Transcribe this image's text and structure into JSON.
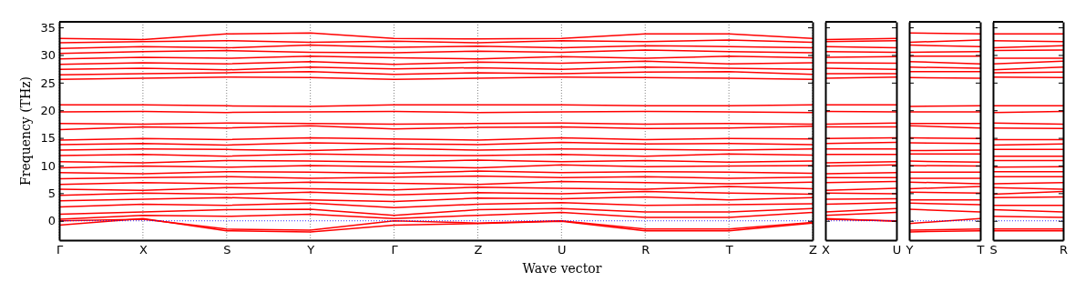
{
  "chart_data": [
    {
      "type": "line",
      "color": "#ff0000",
      "xlabel": "Wave vector",
      "ylabel": "Frequency (THz)",
      "grid": "x",
      "ylim": [
        -3.5,
        36
      ],
      "yticks": [
        0,
        5,
        10,
        15,
        20,
        25,
        30,
        35
      ],
      "categories": [
        "Γ",
        "X",
        "S",
        "Y",
        "Γ",
        "Z",
        "U",
        "R",
        "T",
        "Z"
      ],
      "ref_lines": [
        {
          "axis": "y",
          "value": 0,
          "color": "#0000ff",
          "line_style": "dotted"
        }
      ],
      "series": [
        {
          "values": [
            -0.8,
            0.4,
            -1.8,
            -2.0,
            -0.8,
            -0.5,
            -0.1,
            -1.8,
            -1.8,
            -0.4
          ]
        },
        {
          "values": [
            0,
            0.3,
            -1.5,
            -1.7,
            0,
            -0.4,
            0,
            -1.5,
            -1.5,
            -0.3
          ]
        },
        {
          "values": [
            0.3,
            1.0,
            0.8,
            1.2,
            0.4,
            1.0,
            1.5,
            0.6,
            0.6,
            1.5
          ]
        },
        {
          "values": [
            1.2,
            1.6,
            2.0,
            2.1,
            1.0,
            2.0,
            2.2,
            1.6,
            1.6,
            2.2
          ]
        },
        {
          "values": [
            2.5,
            3.0,
            2.8,
            3.2,
            2.4,
            3.0,
            3.3,
            2.8,
            2.9,
            3.1
          ]
        },
        {
          "values": [
            3.6,
            3.9,
            4.2,
            3.8,
            3.5,
            4.1,
            4.0,
            4.3,
            3.8,
            4.2
          ]
        },
        {
          "values": [
            4.6,
            5.0,
            4.8,
            5.2,
            4.7,
            5.1,
            4.9,
            5.3,
            5.0,
            4.8
          ]
        },
        {
          "values": [
            5.7,
            5.5,
            6.0,
            5.8,
            5.6,
            6.1,
            5.9,
            5.7,
            6.2,
            5.8
          ]
        },
        {
          "values": [
            6.6,
            6.9,
            6.7,
            7.0,
            6.8,
            6.6,
            7.1,
            6.9,
            6.7,
            7.0
          ]
        },
        {
          "values": [
            7.6,
            7.8,
            8.0,
            7.7,
            7.9,
            8.1,
            7.8,
            8.0,
            7.7,
            7.9
          ]
        },
        {
          "values": [
            8.7,
            8.5,
            8.9,
            8.8,
            8.6,
            9.0,
            8.7,
            8.9,
            8.8,
            8.6
          ]
        },
        {
          "values": [
            9.6,
            9.9,
            9.7,
            10.0,
            9.8,
            9.6,
            10.1,
            9.8,
            9.9,
            10.0
          ]
        },
        {
          "values": [
            10.7,
            10.5,
            10.9,
            10.8,
            10.6,
            11.0,
            10.7,
            10.9,
            10.6,
            10.8
          ]
        },
        {
          "values": [
            11.8,
            12.0,
            11.7,
            12.1,
            11.9,
            11.8,
            12.0,
            11.7,
            12.1,
            11.9
          ]
        },
        {
          "values": [
            12.8,
            13.0,
            12.9,
            12.7,
            13.1,
            12.8,
            13.0,
            12.9,
            12.8,
            13.0
          ]
        },
        {
          "values": [
            13.8,
            14.0,
            13.7,
            14.1,
            13.9,
            13.8,
            14.2,
            13.9,
            14.0,
            13.8
          ]
        },
        {
          "values": [
            14.6,
            14.9,
            14.7,
            15.0,
            14.8,
            14.6,
            15.0,
            14.7,
            14.9,
            14.8
          ]
        },
        {
          "values": [
            16.5,
            17.0,
            16.8,
            17.2,
            16.6,
            16.9,
            17.0,
            16.7,
            16.8,
            17.1
          ]
        },
        {
          "values": [
            17.6,
            17.5,
            17.7,
            17.6,
            17.5,
            17.6,
            17.7,
            17.5,
            17.6,
            17.5
          ]
        },
        {
          "values": [
            19.7,
            19.8,
            19.6,
            19.7,
            19.8,
            19.6,
            19.7,
            19.8,
            19.7,
            19.6
          ]
        },
        {
          "values": [
            21.0,
            21.0,
            20.8,
            20.7,
            21.0,
            21.0,
            21.0,
            20.8,
            20.8,
            21.0
          ]
        },
        {
          "values": [
            25.6,
            25.8,
            26.0,
            25.9,
            25.6,
            25.8,
            26.0,
            25.9,
            25.8,
            25.6
          ]
        },
        {
          "values": [
            26.4,
            26.6,
            26.8,
            27.0,
            26.5,
            26.8,
            26.6,
            26.9,
            27.0,
            26.5
          ]
        },
        {
          "values": [
            27.4,
            27.6,
            27.3,
            27.8,
            27.5,
            27.7,
            27.4,
            27.8,
            27.6,
            27.4
          ]
        },
        {
          "values": [
            28.3,
            28.6,
            28.4,
            28.8,
            28.3,
            28.7,
            28.5,
            28.9,
            28.4,
            28.6
          ]
        },
        {
          "values": [
            29.3,
            29.6,
            29.4,
            29.8,
            29.5,
            29.3,
            29.7,
            29.4,
            29.8,
            29.5
          ]
        },
        {
          "values": [
            30.3,
            30.6,
            30.8,
            30.5,
            30.4,
            30.7,
            30.5,
            30.9,
            30.6,
            30.4
          ]
        },
        {
          "values": [
            31.2,
            31.5,
            31.3,
            31.8,
            31.4,
            31.6,
            31.3,
            31.7,
            31.5,
            31.3
          ]
        },
        {
          "values": [
            32.2,
            32.4,
            32.6,
            32.3,
            32.5,
            32.2,
            32.6,
            32.4,
            32.7,
            32.3
          ]
        },
        {
          "values": [
            33.0,
            32.8,
            33.8,
            34.0,
            33.0,
            32.9,
            33.0,
            33.8,
            33.8,
            33.0
          ]
        }
      ]
    },
    {
      "type": "line",
      "color": "#ff0000",
      "tick_labels": "x",
      "ylim": [
        -3.5,
        36
      ],
      "yticks": [
        0,
        5,
        10,
        15,
        20,
        25,
        30,
        35
      ],
      "categories": [
        "X",
        "U"
      ],
      "ref_lines": [
        {
          "axis": "y",
          "value": 0,
          "color": "#0000ff",
          "line_style": "dotted"
        }
      ],
      "series": [
        {
          "values": [
            0.4,
            -0.1
          ]
        },
        {
          "values": [
            0.3,
            0
          ]
        },
        {
          "values": [
            1.0,
            1.5
          ]
        },
        {
          "values": [
            1.6,
            2.2
          ]
        },
        {
          "values": [
            3.0,
            3.3
          ]
        },
        {
          "values": [
            3.9,
            4.0
          ]
        },
        {
          "values": [
            5.0,
            4.9
          ]
        },
        {
          "values": [
            5.5,
            5.9
          ]
        },
        {
          "values": [
            6.9,
            7.1
          ]
        },
        {
          "values": [
            7.8,
            7.8
          ]
        },
        {
          "values": [
            8.5,
            8.7
          ]
        },
        {
          "values": [
            9.9,
            10.1
          ]
        },
        {
          "values": [
            10.5,
            10.7
          ]
        },
        {
          "values": [
            12.0,
            12.0
          ]
        },
        {
          "values": [
            13.0,
            13.0
          ]
        },
        {
          "values": [
            14.0,
            14.2
          ]
        },
        {
          "values": [
            14.9,
            15.0
          ]
        },
        {
          "values": [
            17.0,
            17.0
          ]
        },
        {
          "values": [
            17.5,
            17.7
          ]
        },
        {
          "values": [
            19.8,
            19.7
          ]
        },
        {
          "values": [
            21.0,
            21.0
          ]
        },
        {
          "values": [
            25.8,
            26.0
          ]
        },
        {
          "values": [
            26.6,
            26.6
          ]
        },
        {
          "values": [
            27.6,
            27.4
          ]
        },
        {
          "values": [
            28.6,
            28.5
          ]
        },
        {
          "values": [
            29.6,
            29.7
          ]
        },
        {
          "values": [
            30.6,
            30.5
          ]
        },
        {
          "values": [
            31.5,
            31.3
          ]
        },
        {
          "values": [
            32.4,
            32.6
          ]
        },
        {
          "values": [
            32.8,
            33.0
          ]
        }
      ]
    },
    {
      "type": "line",
      "color": "#ff0000",
      "tick_labels": "x",
      "ylim": [
        -3.5,
        36
      ],
      "yticks": [
        0,
        5,
        10,
        15,
        20,
        25,
        30,
        35
      ],
      "categories": [
        "Y",
        "T"
      ],
      "ref_lines": [
        {
          "axis": "y",
          "value": 0,
          "color": "#0000ff",
          "line_style": "dotted"
        }
      ],
      "series": [
        {
          "values": [
            -2.0,
            -1.8
          ]
        },
        {
          "values": [
            -1.7,
            -1.5
          ]
        },
        {
          "values": [
            -0.5,
            0.4
          ]
        },
        {
          "values": [
            2.1,
            1.6
          ]
        },
        {
          "values": [
            3.2,
            2.9
          ]
        },
        {
          "values": [
            3.8,
            3.8
          ]
        },
        {
          "values": [
            5.2,
            5.0
          ]
        },
        {
          "values": [
            5.8,
            6.2
          ]
        },
        {
          "values": [
            7.0,
            6.7
          ]
        },
        {
          "values": [
            7.7,
            7.7
          ]
        },
        {
          "values": [
            8.8,
            8.8
          ]
        },
        {
          "values": [
            10.0,
            9.9
          ]
        },
        {
          "values": [
            10.8,
            10.6
          ]
        },
        {
          "values": [
            12.1,
            12.1
          ]
        },
        {
          "values": [
            12.7,
            12.8
          ]
        },
        {
          "values": [
            14.1,
            14.0
          ]
        },
        {
          "values": [
            15.0,
            14.9
          ]
        },
        {
          "values": [
            17.2,
            16.8
          ]
        },
        {
          "values": [
            17.6,
            17.6
          ]
        },
        {
          "values": [
            19.7,
            19.7
          ]
        },
        {
          "values": [
            20.7,
            20.8
          ]
        },
        {
          "values": [
            25.9,
            25.8
          ]
        },
        {
          "values": [
            27.0,
            27.0
          ]
        },
        {
          "values": [
            27.8,
            27.6
          ]
        },
        {
          "values": [
            28.8,
            28.4
          ]
        },
        {
          "values": [
            29.8,
            29.8
          ]
        },
        {
          "values": [
            30.5,
            30.6
          ]
        },
        {
          "values": [
            31.8,
            31.5
          ]
        },
        {
          "values": [
            32.3,
            32.7
          ]
        },
        {
          "values": [
            34.0,
            33.8
          ]
        }
      ]
    },
    {
      "type": "line",
      "color": "#ff0000",
      "tick_labels": "x",
      "ylim": [
        -3.5,
        36
      ],
      "yticks": [
        0,
        5,
        10,
        15,
        20,
        25,
        30,
        35
      ],
      "categories": [
        "S",
        "R"
      ],
      "ref_lines": [
        {
          "axis": "y",
          "value": 0,
          "color": "#0000ff",
          "line_style": "dotted"
        }
      ],
      "series": [
        {
          "values": [
            -1.8,
            -1.8
          ]
        },
        {
          "values": [
            -1.5,
            -1.5
          ]
        },
        {
          "values": [
            0.8,
            0.6
          ]
        },
        {
          "values": [
            2.0,
            1.6
          ]
        },
        {
          "values": [
            2.8,
            2.8
          ]
        },
        {
          "values": [
            4.2,
            4.3
          ]
        },
        {
          "values": [
            4.8,
            5.3
          ]
        },
        {
          "values": [
            6.0,
            5.7
          ]
        },
        {
          "values": [
            6.7,
            6.9
          ]
        },
        {
          "values": [
            8.0,
            8.0
          ]
        },
        {
          "values": [
            8.9,
            8.9
          ]
        },
        {
          "values": [
            9.7,
            9.8
          ]
        },
        {
          "values": [
            10.9,
            10.9
          ]
        },
        {
          "values": [
            11.7,
            11.7
          ]
        },
        {
          "values": [
            12.9,
            12.9
          ]
        },
        {
          "values": [
            13.7,
            13.9
          ]
        },
        {
          "values": [
            14.7,
            14.7
          ]
        },
        {
          "values": [
            16.8,
            16.7
          ]
        },
        {
          "values": [
            17.7,
            17.5
          ]
        },
        {
          "values": [
            19.6,
            19.8
          ]
        },
        {
          "values": [
            20.8,
            20.8
          ]
        },
        {
          "values": [
            26.0,
            25.9
          ]
        },
        {
          "values": [
            26.8,
            26.9
          ]
        },
        {
          "values": [
            27.3,
            27.8
          ]
        },
        {
          "values": [
            28.4,
            28.9
          ]
        },
        {
          "values": [
            29.4,
            29.4
          ]
        },
        {
          "values": [
            30.8,
            30.9
          ]
        },
        {
          "values": [
            31.3,
            31.7
          ]
        },
        {
          "values": [
            32.6,
            32.4
          ]
        },
        {
          "values": [
            33.8,
            33.8
          ]
        }
      ]
    }
  ]
}
